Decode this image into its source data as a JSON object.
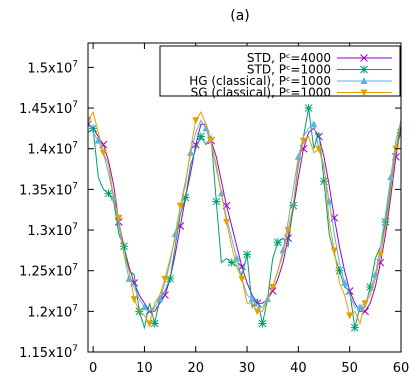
{
  "chart_data": {
    "type": "line",
    "title": "(a)",
    "xlim": [
      -1,
      60
    ],
    "ylim": [
      11500000,
      15300000
    ],
    "x_ticks": [
      0,
      10,
      20,
      30,
      40,
      50,
      60
    ],
    "x_tick_labels": [
      "0",
      "10",
      "20",
      "30",
      "40",
      "50",
      "60"
    ],
    "y_ticks": [
      {
        "value": 11500000,
        "mantissa": "1.15x10",
        "exp": "7"
      },
      {
        "value": 12000000,
        "mantissa": "1.2x10",
        "exp": "7"
      },
      {
        "value": 12500000,
        "mantissa": "1.25x10",
        "exp": "7"
      },
      {
        "value": 13000000,
        "mantissa": "1.3x10",
        "exp": "7"
      },
      {
        "value": 13500000,
        "mantissa": "1.35x10",
        "exp": "7"
      },
      {
        "value": 14000000,
        "mantissa": "1.4x10",
        "exp": "7"
      },
      {
        "value": 14500000,
        "mantissa": "1.45x10",
        "exp": "7"
      },
      {
        "value": 15000000,
        "mantissa": "1.5x10",
        "exp": "7"
      }
    ],
    "legend_position": "top-right",
    "grid": false,
    "series": [
      {
        "name": "STD, Pᶜ=4000",
        "color": "#9400d3",
        "marker": "x",
        "x": [
          -1,
          0,
          1,
          2,
          3,
          4,
          5,
          6,
          7,
          8,
          9,
          10,
          11,
          12,
          13,
          14,
          15,
          16,
          17,
          18,
          19,
          20,
          21,
          22,
          23,
          24,
          25,
          26,
          27,
          28,
          29,
          30,
          31,
          32,
          33,
          34,
          35,
          36,
          37,
          38,
          39,
          40,
          41,
          42,
          43,
          44,
          45,
          46,
          47,
          48,
          49,
          50,
          51,
          52,
          53,
          54,
          55,
          56,
          57,
          58,
          59,
          60
        ],
        "y": [
          14300000,
          14250000,
          14150000,
          14050000,
          13850000,
          13550000,
          13100000,
          12800000,
          12550000,
          12350000,
          12200000,
          12100000,
          12000000,
          12000000,
          12100000,
          12200000,
          12400000,
          12700000,
          13050000,
          13400000,
          13700000,
          14050000,
          14300000,
          14300000,
          14100000,
          13900000,
          13600000,
          13300000,
          13050000,
          12800000,
          12550000,
          12350000,
          12200000,
          12100000,
          12100000,
          12150000,
          12250000,
          12400000,
          12600000,
          12900000,
          13250000,
          13650000,
          14000000,
          14200000,
          14250000,
          14150000,
          13900000,
          13550000,
          13150000,
          12800000,
          12500000,
          12250000,
          12100000,
          12000000,
          12000000,
          12100000,
          12300000,
          12600000,
          12950000,
          13400000,
          13900000,
          14300000
        ]
      },
      {
        "name": "STD, Pᶜ=1000",
        "color": "#009e73",
        "marker": "asterisk",
        "x": [
          -1,
          0,
          1,
          2,
          3,
          4,
          5,
          6,
          7,
          8,
          9,
          10,
          11,
          12,
          13,
          14,
          15,
          16,
          17,
          18,
          19,
          20,
          21,
          22,
          23,
          24,
          25,
          26,
          27,
          28,
          29,
          30,
          31,
          32,
          33,
          34,
          35,
          36,
          37,
          38,
          39,
          40,
          41,
          42,
          43,
          44,
          45,
          46,
          47,
          48,
          49,
          50,
          51,
          52,
          53,
          54,
          55,
          56,
          57,
          58,
          59,
          60
        ],
        "y": [
          14200000,
          14250000,
          13650000,
          13500000,
          13450000,
          13350000,
          12950000,
          12800000,
          12500000,
          12450000,
          12000000,
          11800000,
          12100000,
          11850000,
          12150000,
          12250000,
          12400000,
          12800000,
          13200000,
          13400000,
          13800000,
          14000000,
          14150000,
          14050000,
          14150000,
          13350000,
          12600000,
          12650000,
          12600000,
          12550000,
          12450000,
          12700000,
          12050000,
          12150000,
          11850000,
          12150000,
          12650000,
          12850000,
          12900000,
          12800000,
          13300000,
          13800000,
          14150000,
          14500000,
          14000000,
          14200000,
          13600000,
          12950000,
          12700000,
          12500000,
          12300000,
          12250000,
          11800000,
          12050000,
          12050000,
          12300000,
          12650000,
          12800000,
          13100000,
          13550000,
          14000000,
          14200000
        ]
      },
      {
        "name": "HG (classical), Pᶜ=1000",
        "color": "#56b4e9",
        "marker": "triangle",
        "x": [
          -1,
          0,
          1,
          2,
          3,
          4,
          5,
          6,
          7,
          8,
          9,
          10,
          11,
          12,
          13,
          14,
          15,
          16,
          17,
          18,
          19,
          20,
          21,
          22,
          23,
          24,
          25,
          26,
          27,
          28,
          29,
          30,
          31,
          32,
          33,
          34,
          35,
          36,
          37,
          38,
          39,
          40,
          41,
          42,
          43,
          44,
          45,
          46,
          47,
          48,
          49,
          50,
          51,
          52,
          53,
          54,
          55,
          56,
          57,
          58,
          59,
          60
        ],
        "y": [
          14350000,
          14200000,
          14100000,
          13950000,
          13700000,
          13400000,
          13050000,
          12700000,
          12400000,
          12300000,
          12150000,
          12050000,
          12000000,
          12050000,
          12150000,
          12350000,
          12600000,
          12950000,
          13300000,
          13600000,
          13950000,
          14200000,
          14350000,
          14250000,
          14050000,
          13800000,
          13450000,
          13150000,
          12900000,
          12650000,
          12400000,
          12200000,
          12150000,
          12050000,
          12050000,
          12150000,
          12300000,
          12500000,
          12750000,
          13100000,
          13500000,
          13900000,
          14150000,
          14250000,
          14300000,
          14000000,
          13750000,
          13350000,
          12950000,
          12600000,
          12350000,
          12200000,
          12050000,
          12050000,
          12100000,
          12250000,
          12450000,
          12800000,
          13200000,
          13650000,
          14100000,
          14350000
        ]
      },
      {
        "name": "SG (classical), Pᶜ=1000",
        "color": "#e69f00",
        "marker": "triangle-down",
        "x": [
          -1,
          0,
          1,
          2,
          3,
          4,
          5,
          6,
          7,
          8,
          9,
          10,
          11,
          12,
          13,
          14,
          15,
          16,
          17,
          18,
          19,
          20,
          21,
          22,
          23,
          24,
          25,
          26,
          27,
          28,
          29,
          30,
          31,
          32,
          33,
          34,
          35,
          36,
          37,
          38,
          39,
          40,
          41,
          42,
          43,
          44,
          45,
          46,
          47,
          48,
          49,
          50,
          51,
          52,
          53,
          54,
          55,
          56,
          57,
          58,
          59,
          60
        ],
        "y": [
          14350000,
          14450000,
          14200000,
          13950000,
          13800000,
          13400000,
          13150000,
          12700000,
          12500000,
          12150000,
          12000000,
          11950000,
          11850000,
          12100000,
          12200000,
          12400000,
          12650000,
          12900000,
          13300000,
          13550000,
          14000000,
          14350000,
          14450000,
          14300000,
          14100000,
          13750000,
          13450000,
          13100000,
          12800000,
          12550000,
          12400000,
          12100000,
          12100000,
          12000000,
          12000000,
          12150000,
          12300000,
          12500000,
          12700000,
          13000000,
          13300000,
          13850000,
          14100000,
          14150000,
          13950000,
          14000000,
          13800000,
          13100000,
          12750000,
          12350000,
          12200000,
          11950000,
          12000000,
          11850000,
          12100000,
          12200000,
          12400000,
          12700000,
          13050000,
          13500000,
          14000000,
          14350000
        ]
      }
    ]
  }
}
